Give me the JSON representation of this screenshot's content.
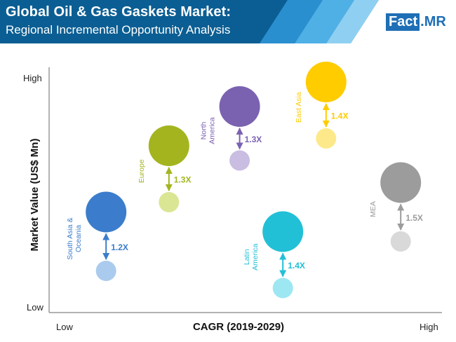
{
  "header": {
    "title": "Global Oil & Gas Gaskets Market:",
    "subtitle": "Regional Incremental Opportunity Analysis",
    "logo_fact": "Fact",
    "logo_dot": ".",
    "logo_mr": "MR"
  },
  "colors": {
    "header_bg": "#0b5e93",
    "header_stripe_1": "#2a8fcf",
    "header_stripe_2": "#4fb0e6",
    "header_stripe_3": "#8fd0f2",
    "axis": "#9a9a9a",
    "label_text": "#222222"
  },
  "chart_data": {
    "type": "scatter",
    "subtype": "bubble-pairs",
    "xlabel": "CAGR (2019-2029)",
    "ylabel": "Market Value (US$ Mn)",
    "x_ticks": {
      "low": "Low",
      "high": "High"
    },
    "y_ticks": {
      "low": "Low",
      "high": "High"
    },
    "xlim": [
      0,
      1
    ],
    "ylim": [
      0,
      1
    ],
    "grid": false,
    "series": [
      {
        "name": "South Asia & Oceania",
        "label_lines": [
          "South Asia &",
          "Oceania"
        ],
        "multiplier": "1.2X",
        "x": 0.145,
        "y_high": 0.41,
        "y_low": 0.17,
        "size_high": 1.0,
        "size_low": 0.5,
        "color_high": "#3b7dcc",
        "color_low": "#aacbee"
      },
      {
        "name": "Europe",
        "label_lines": [
          "Europe"
        ],
        "multiplier": "1.3X",
        "x": 0.305,
        "y_high": 0.68,
        "y_low": 0.45,
        "size_high": 1.0,
        "size_low": 0.5,
        "color_high": "#a4b41f",
        "color_low": "#dbe695"
      },
      {
        "name": "North America",
        "label_lines": [
          "North",
          "America"
        ],
        "multiplier": "1.3X",
        "x": 0.485,
        "y_high": 0.84,
        "y_low": 0.62,
        "size_high": 1.0,
        "size_low": 0.5,
        "color_high": "#7b62b0",
        "color_low": "#c9bde2"
      },
      {
        "name": "East Asia",
        "label_lines": [
          "East Asia"
        ],
        "multiplier": "1.4X",
        "x": 0.705,
        "y_high": 0.94,
        "y_low": 0.71,
        "size_high": 1.0,
        "size_low": 0.5,
        "color_high": "#ffcc00",
        "color_low": "#fde98a"
      },
      {
        "name": "Latin America",
        "label_lines": [
          "Latin",
          "America"
        ],
        "multiplier": "1.4X",
        "x": 0.595,
        "y_high": 0.33,
        "y_low": 0.1,
        "size_high": 1.0,
        "size_low": 0.5,
        "color_high": "#22c0d6",
        "color_low": "#9de7f2"
      },
      {
        "name": "MEA",
        "label_lines": [
          "MEA"
        ],
        "multiplier": "1.5X",
        "x": 0.895,
        "y_high": 0.53,
        "y_low": 0.29,
        "size_high": 1.0,
        "size_low": 0.5,
        "color_high": "#9c9c9c",
        "color_low": "#d9d9d9"
      }
    ]
  }
}
